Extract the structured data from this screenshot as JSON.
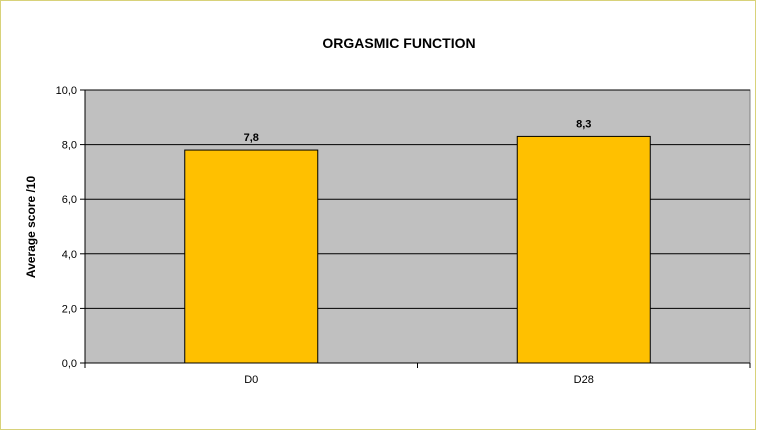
{
  "chart_data": {
    "type": "bar",
    "title": "ORGASMIC FUNCTION",
    "xlabel": "",
    "ylabel": "Average score /10",
    "categories": [
      "D0",
      "D28"
    ],
    "values": [
      7.8,
      8.3
    ],
    "data_labels": [
      "7,8",
      "8,3"
    ],
    "ylim": [
      0,
      10
    ],
    "yticks": [
      0,
      2,
      4,
      6,
      8,
      10
    ],
    "ytick_labels": [
      "0,0",
      "2,0",
      "4,0",
      "6,0",
      "8,0",
      "10,0"
    ],
    "grid": true,
    "legend": "none",
    "colors": {
      "bar": "#FFC000",
      "plot_area": "#C0C0C0",
      "frame": "#D8D27A"
    }
  }
}
